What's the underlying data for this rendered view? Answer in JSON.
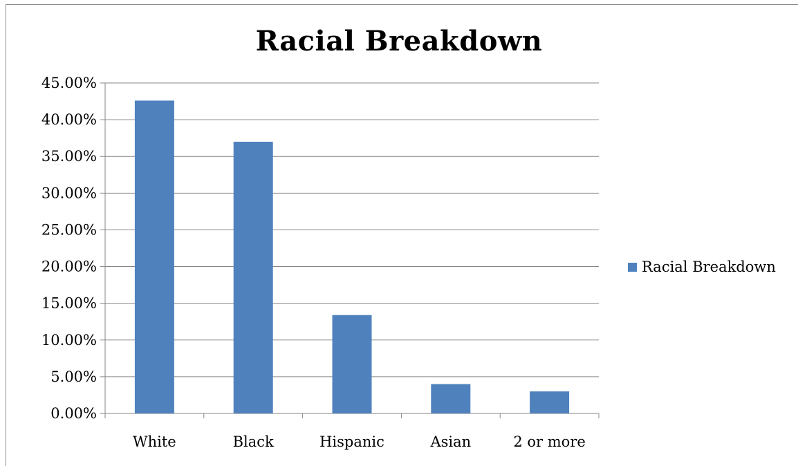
{
  "chart_data": {
    "type": "bar",
    "title": "Racial Breakdown",
    "categories": [
      "White",
      "Black",
      "Hispanic",
      "Asian",
      "2 or more"
    ],
    "series": [
      {
        "name": "Racial Breakdown",
        "values": [
          42.6,
          37.0,
          13.4,
          4.0,
          3.0
        ],
        "color": "#4f81bd"
      }
    ],
    "y_tick_labels": [
      "0.00%",
      "5.00%",
      "10.00%",
      "15.00%",
      "20.00%",
      "25.00%",
      "30.00%",
      "35.00%",
      "40.00%",
      "45.00%"
    ],
    "ylim": [
      0,
      45
    ],
    "y_tick_step": 5,
    "ylabel": "",
    "xlabel": "",
    "grid": true,
    "legend_position": "right",
    "gridline_color": "#868686"
  }
}
